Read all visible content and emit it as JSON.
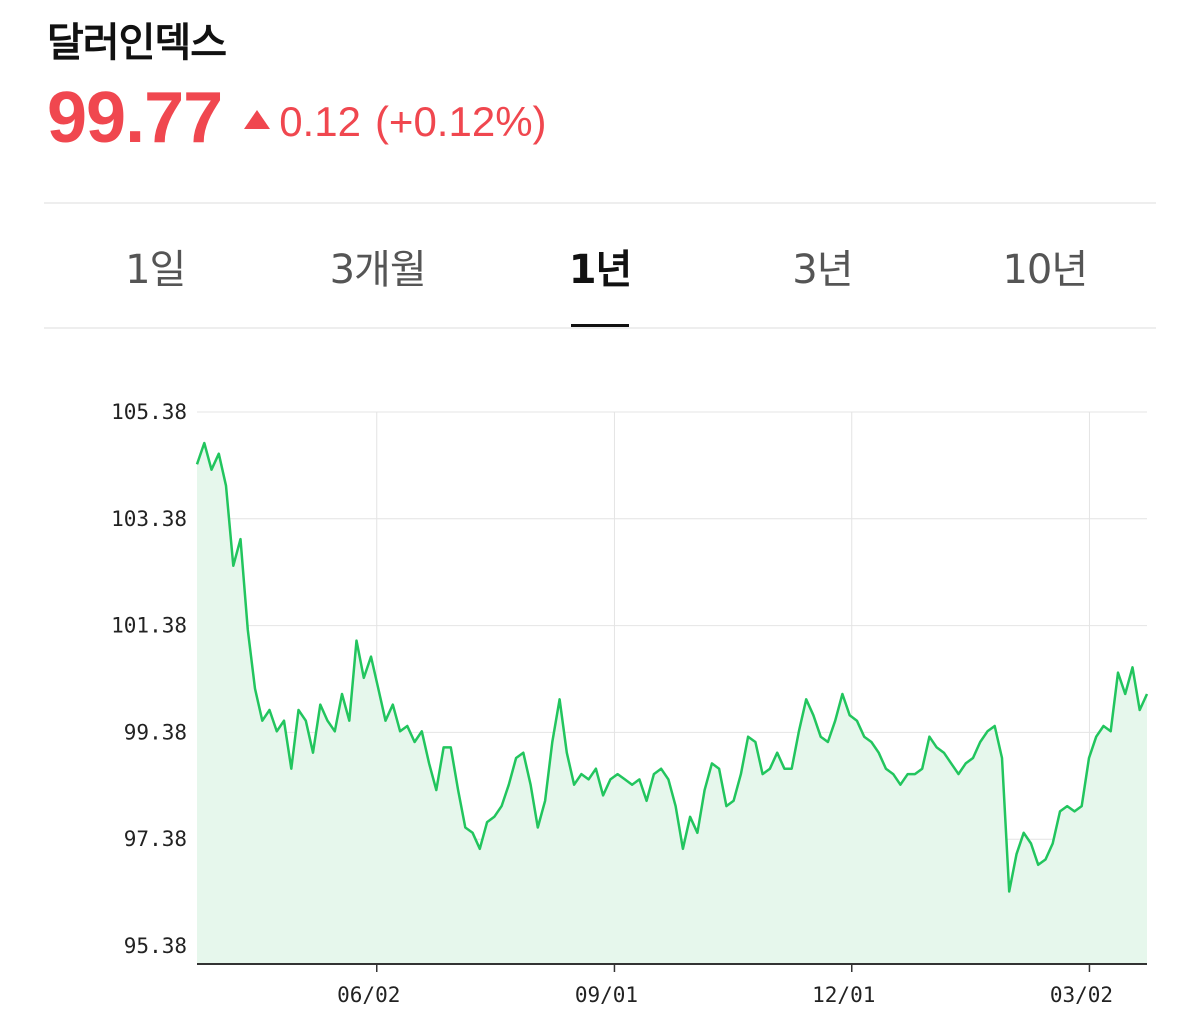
{
  "header": {
    "title": "달러인덱스",
    "price": "99.77",
    "change": "0.12",
    "change_pct": "(+0.12%)",
    "change_direction_icon": "triangle-up-icon",
    "accent_color": "#f0474f"
  },
  "tabs": [
    {
      "label": "1일",
      "active": false
    },
    {
      "label": "3개월",
      "active": false
    },
    {
      "label": "1년",
      "active": true
    },
    {
      "label": "3년",
      "active": false
    },
    {
      "label": "10년",
      "active": false
    }
  ],
  "chart_data": {
    "type": "area",
    "line_color": "#22c55e",
    "fill_color": "#e6f7ec",
    "grid": true,
    "ylim": [
      95.38,
      105.38
    ],
    "y_ticks": [
      "105.38",
      "103.38",
      "101.38",
      "99.38",
      "97.38",
      "95.38"
    ],
    "x_ticks": [
      "06/02",
      "09/01",
      "12/01",
      "03/02"
    ],
    "x_tick_positions": [
      45.6,
      105.9,
      166.1,
      226.4
    ],
    "xlim": [
      0,
      241
    ],
    "series": [
      {
        "values": [
          104.4,
          104.8,
          104.3,
          104.6,
          104.0,
          102.5,
          103.0,
          101.3,
          100.2,
          99.6,
          99.8,
          99.4,
          99.6,
          98.7,
          99.8,
          99.6,
          99.0,
          99.9,
          99.6,
          99.4,
          100.1,
          99.6,
          101.1,
          100.4,
          100.8,
          100.2,
          99.6,
          99.9,
          99.4,
          99.5,
          99.2,
          99.4,
          98.8,
          98.3,
          99.1,
          99.1,
          98.3,
          97.6,
          97.5,
          97.2,
          97.7,
          97.8,
          98.0,
          98.4,
          98.9,
          99.0,
          98.4,
          97.6,
          98.1,
          99.2,
          100.0,
          99.0,
          98.4,
          98.6,
          98.5,
          98.7,
          98.2,
          98.5,
          98.6,
          98.5,
          98.4,
          98.5,
          98.1,
          98.6,
          98.7,
          98.5,
          98.0,
          97.2,
          97.8,
          97.5,
          98.3,
          98.8,
          98.7,
          98.0,
          98.1,
          98.6,
          99.3,
          99.2,
          98.6,
          98.7,
          99.0,
          98.7,
          98.7,
          99.4,
          100.0,
          99.7,
          99.3,
          99.2,
          99.6,
          100.1,
          99.7,
          99.6,
          99.3,
          99.2,
          99.0,
          98.7,
          98.6,
          98.4,
          98.6,
          98.6,
          98.7,
          99.3,
          99.1,
          99.0,
          98.8,
          98.6,
          98.8,
          98.9,
          99.2,
          99.4,
          99.5,
          98.9,
          96.4,
          97.1,
          97.5,
          97.3,
          96.9,
          97.0,
          97.3,
          97.9,
          98.0,
          97.9,
          98.0,
          98.9,
          99.3,
          99.5,
          99.4,
          100.5,
          100.1,
          100.6,
          99.8,
          100.1
        ]
      }
    ]
  }
}
